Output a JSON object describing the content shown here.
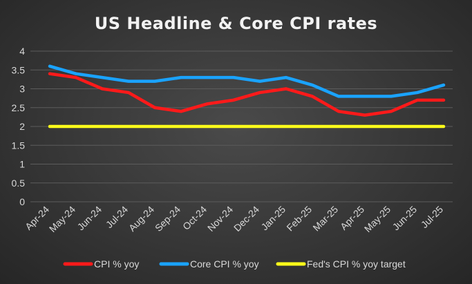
{
  "chart_data": {
    "type": "line",
    "title": "US Headline & Core CPI rates",
    "xlabel": "",
    "ylabel": "",
    "categories": [
      "Apr-24",
      "May-24",
      "Jun-24",
      "Jul-24",
      "Aug-24",
      "Sep-24",
      "Oct-24",
      "Nov-24",
      "Dec-24",
      "Jan-25",
      "Feb-25",
      "Mar-25",
      "Apr-25",
      "May-25",
      "Jun-25",
      "Jul-25"
    ],
    "ylim": [
      0,
      4
    ],
    "yticks": [
      0,
      0.5,
      1,
      1.5,
      2,
      2.5,
      3,
      3.5,
      4
    ],
    "grid": true,
    "legend_position": "bottom",
    "series": [
      {
        "name": "CPI % yoy",
        "color": "#ff1a1a",
        "values": [
          3.4,
          3.3,
          3.0,
          2.9,
          2.5,
          2.4,
          2.6,
          2.7,
          2.9,
          3.0,
          2.8,
          2.4,
          2.3,
          2.4,
          2.7,
          2.7
        ]
      },
      {
        "name": "Core CPI % yoy",
        "color": "#1aa3ff",
        "values": [
          3.6,
          3.4,
          3.3,
          3.2,
          3.2,
          3.3,
          3.3,
          3.3,
          3.2,
          3.3,
          3.1,
          2.8,
          2.8,
          2.8,
          2.9,
          3.1
        ]
      },
      {
        "name": "Fed's CPI % yoy target",
        "color": "#ffff1a",
        "values": [
          2,
          2,
          2,
          2,
          2,
          2,
          2,
          2,
          2,
          2,
          2,
          2,
          2,
          2,
          2,
          2
        ]
      }
    ],
    "colors": {
      "grid": "#5c5c5c",
      "axis_text": "#d9d9d9",
      "title": "#f2f2f2"
    }
  }
}
